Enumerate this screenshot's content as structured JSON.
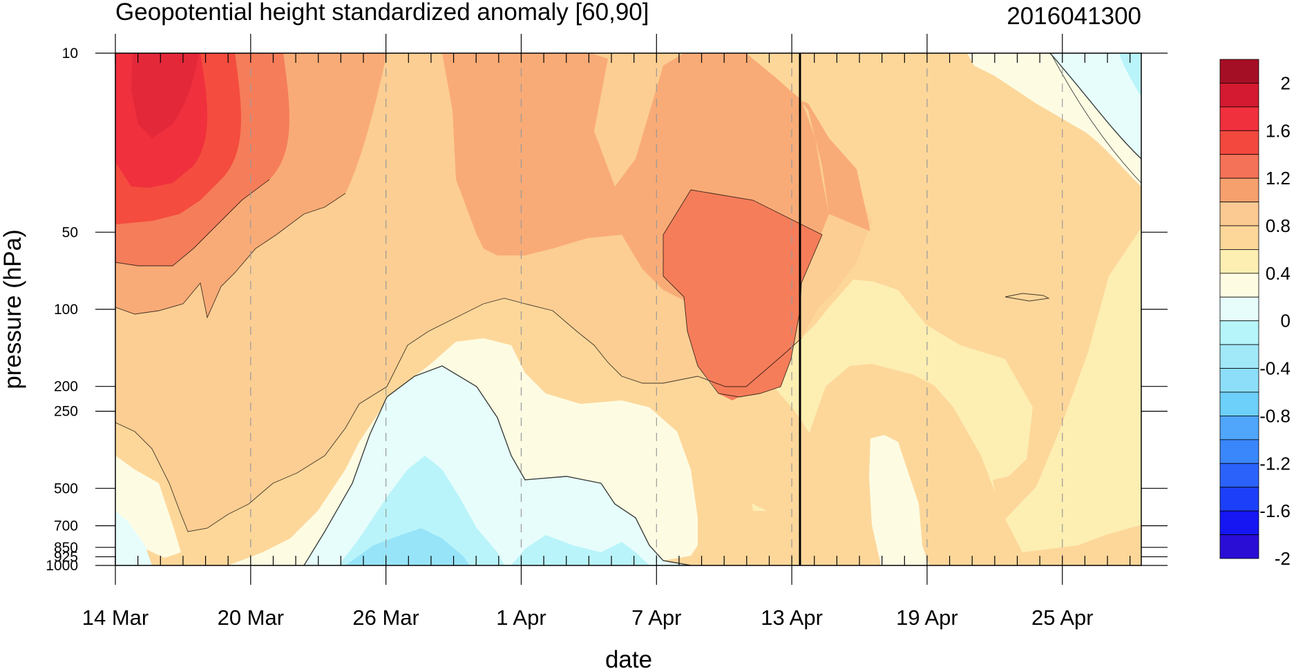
{
  "chart_data": {
    "type": "heatmap",
    "subtype": "filled-contour",
    "title": "Geopotential height standardized anomaly [60,90]",
    "date_stamp": "2016041300",
    "xlabel": "date",
    "ylabel": "pressure (hPa)",
    "x_ticks": [
      "14 Mar",
      "20 Mar",
      "26 Mar",
      "1 Apr",
      "7 Apr",
      "13 Apr",
      "19 Apr",
      "25 Apr"
    ],
    "x_range": [
      "14 Mar",
      "28 Apr"
    ],
    "y_ticks": [
      10,
      50,
      100,
      200,
      250,
      500,
      700,
      850,
      925,
      1000
    ],
    "y_range": [
      10,
      1000
    ],
    "y_scale": "log",
    "y_inverted": true,
    "current_date_marker": "13 Apr",
    "grid": "dashed vertical lines at x ticks",
    "colorbar": {
      "labels": [
        "2",
        "1.6",
        "1.2",
        "0.8",
        "0.4",
        "0",
        "-0.4",
        "-0.8",
        "-1.2",
        "-1.6",
        "-2"
      ],
      "levels": [
        2.2,
        2.0,
        1.8,
        1.6,
        1.4,
        1.2,
        1.0,
        0.8,
        0.6,
        0.4,
        0.2,
        0,
        -0.2,
        -0.4,
        -0.6,
        -0.8,
        -1.0,
        -1.2,
        -1.4,
        -1.6,
        -1.8,
        -2.0,
        -2.2
      ],
      "colors": [
        "#a50f25",
        "#d31a30",
        "#f0303d",
        "#f2483e",
        "#f47257",
        "#f6a06e",
        "#fbc992",
        "#fdd79a",
        "#fdeeb2",
        "#fdfce3",
        "#e6fdfc",
        "#b6f5fa",
        "#a1e8f9",
        "#8ddef9",
        "#6dd0fa",
        "#4fa6fb",
        "#3a86fb",
        "#2b62f9",
        "#1c3ff9",
        "#1516f2",
        "#2a0ed6"
      ]
    },
    "contour_values": [
      {
        "x": "14 Mar",
        "level_hPa": [
          10,
          50,
          100,
          200,
          500,
          1000
        ],
        "value": [
          1.7,
          1.5,
          1.1,
          0.7,
          0.3,
          -0.1
        ]
      },
      {
        "x": "16 Mar",
        "level_hPa": [
          10,
          50,
          100,
          200,
          500,
          1000
        ],
        "value": [
          1.9,
          1.6,
          1.1,
          0.8,
          0.5,
          0.1
        ]
      },
      {
        "x": "20 Mar",
        "level_hPa": [
          10,
          50,
          100,
          200,
          500,
          1000
        ],
        "value": [
          1.5,
          1.1,
          0.8,
          0.6,
          0.6,
          0.3
        ]
      },
      {
        "x": "26 Mar",
        "level_hPa": [
          10,
          50,
          100,
          200,
          500,
          1000
        ],
        "value": [
          0.7,
          0.5,
          0.3,
          -0.1,
          -0.5,
          -0.7
        ]
      },
      {
        "x": "1 Apr",
        "level_hPa": [
          10,
          50,
          100,
          200,
          500,
          1000
        ],
        "value": [
          1.0,
          0.9,
          0.7,
          0.4,
          0.0,
          -0.4
        ]
      },
      {
        "x": "7 Apr",
        "level_hPa": [
          10,
          50,
          100,
          200,
          500,
          1000
        ],
        "value": [
          1.0,
          1.1,
          1.0,
          0.8,
          0.5,
          0.1
        ]
      },
      {
        "x": "10 Apr",
        "level_hPa": [
          10,
          50,
          100,
          200,
          500,
          1000
        ],
        "value": [
          1.0,
          1.2,
          1.2,
          0.9,
          0.5,
          0.2
        ]
      },
      {
        "x": "13 Apr",
        "level_hPa": [
          10,
          50,
          100,
          200,
          500,
          1000
        ],
        "value": [
          0.9,
          1.1,
          1.0,
          0.7,
          0.6,
          0.5
        ]
      },
      {
        "x": "19 Apr",
        "level_hPa": [
          10,
          50,
          100,
          200,
          500,
          1000
        ],
        "value": [
          0.4,
          0.7,
          0.7,
          0.5,
          0.2,
          0.3
        ]
      },
      {
        "x": "25 Apr",
        "level_hPa": [
          10,
          50,
          100,
          200,
          500,
          1000
        ],
        "value": [
          0.0,
          0.6,
          0.7,
          0.6,
          0.7,
          0.5
        ]
      },
      {
        "x": "28 Apr",
        "level_hPa": [
          10,
          50,
          100,
          200,
          500,
          1000
        ],
        "value": [
          -0.3,
          0.4,
          0.5,
          0.5,
          0.5,
          0.5
        ]
      }
    ]
  }
}
